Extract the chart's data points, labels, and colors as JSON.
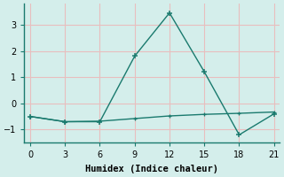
{
  "line1_x": [
    0,
    3,
    6,
    9,
    12,
    15,
    18,
    21
  ],
  "line1_y": [
    -0.5,
    -0.7,
    -0.7,
    1.8,
    3.45,
    1.2,
    -1.2,
    -0.4
  ],
  "line2_x": [
    0,
    3,
    6,
    9,
    12,
    15,
    18,
    21
  ],
  "line2_y": [
    -0.5,
    -0.7,
    -0.68,
    -0.58,
    -0.48,
    -0.42,
    -0.38,
    -0.33
  ],
  "line_color": "#1a7a6e",
  "background_color": "#d4eeeb",
  "grid_color": "#e8bebe",
  "axis_color": "#1a7a6e",
  "xlabel": "Humidex (Indice chaleur)",
  "xlim": [
    -0.5,
    21.5
  ],
  "ylim": [
    -1.5,
    3.8
  ],
  "xticks": [
    0,
    3,
    6,
    9,
    12,
    15,
    18,
    21
  ],
  "yticks": [
    -1,
    0,
    1,
    2,
    3
  ],
  "xlabel_fontsize": 7.5,
  "tick_fontsize": 7,
  "linewidth": 1.0,
  "marker": "+"
}
